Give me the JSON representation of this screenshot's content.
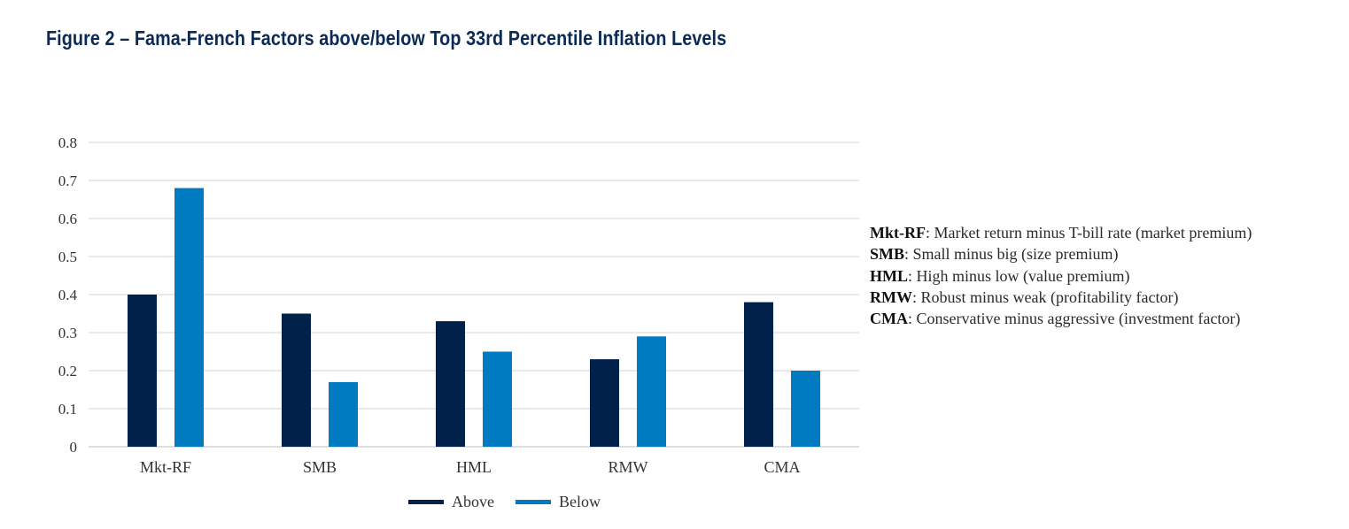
{
  "figure": {
    "title": "Figure 2 – Fama-French Factors above/below Top 33rd Percentile Inflation Levels"
  },
  "chart_data": {
    "type": "bar",
    "categories": [
      "Mkt-RF",
      "SMB",
      "HML",
      "RMW",
      "CMA"
    ],
    "series": [
      {
        "name": "Above",
        "color": "#00224a",
        "values": [
          0.4,
          0.35,
          0.33,
          0.23,
          0.38
        ]
      },
      {
        "name": "Below",
        "color": "#007ac1",
        "values": [
          0.68,
          0.17,
          0.25,
          0.29,
          0.2
        ]
      }
    ],
    "yticks": [
      "0",
      "0.1",
      "0.2",
      "0.3",
      "0.4",
      "0.5",
      "0.6",
      "0.7",
      "0.8"
    ],
    "ylim": [
      0,
      0.8
    ],
    "grid": true,
    "legend_position": "bottom",
    "title": "",
    "xlabel": "",
    "ylabel": ""
  },
  "notes": [
    {
      "abbr": "Mkt-RF",
      "text": ": Market return minus T-bill rate (market premium)"
    },
    {
      "abbr": "SMB",
      "text": ": Small minus big (size premium)"
    },
    {
      "abbr": "HML",
      "text": ": High minus low (value premium)"
    },
    {
      "abbr": "RMW",
      "text": ": Robust minus weak (profitability factor)"
    },
    {
      "abbr": "CMA",
      "text": ": Conservative minus aggressive (investment factor)"
    }
  ]
}
